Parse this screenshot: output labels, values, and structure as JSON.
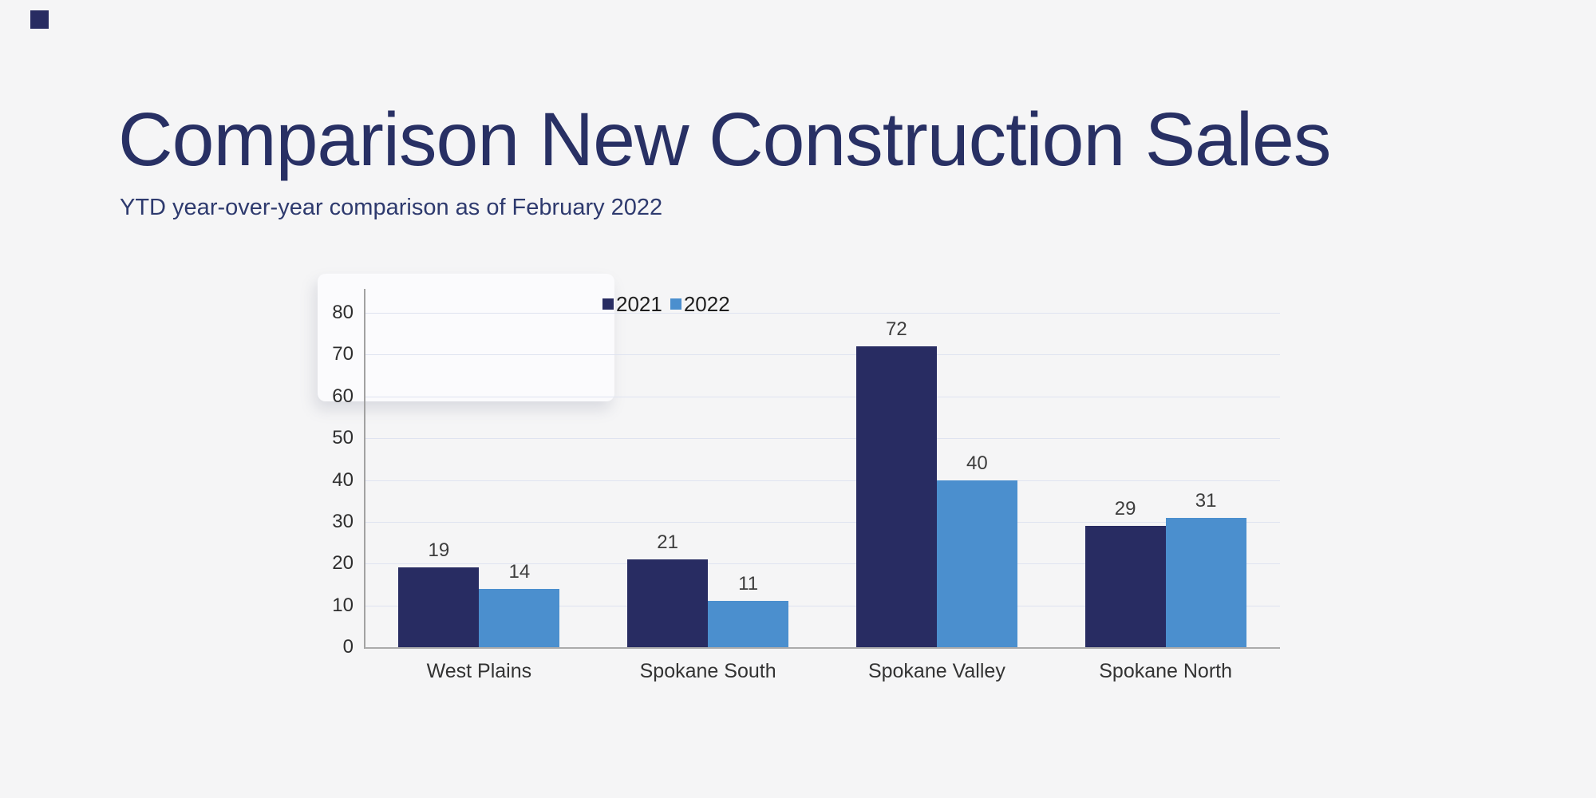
{
  "slide": {
    "title": "Comparison New Construction Sales",
    "subtitle": "YTD year-over-year comparison as of February 2022",
    "background_color": "#f5f5f6",
    "title_color": "#283064",
    "subtitle_color": "#2e3a6e",
    "accent_square_color": "#282c62"
  },
  "chart_data": {
    "type": "bar",
    "categories": [
      "West Plains",
      "Spokane South",
      "Spokane Valley",
      "Spokane North"
    ],
    "series": [
      {
        "name": "2021",
        "color": "#282c62",
        "values": [
          19,
          21,
          72,
          29
        ]
      },
      {
        "name": "2022",
        "color": "#4b8fce",
        "values": [
          14,
          11,
          40,
          31
        ]
      }
    ],
    "ylim": [
      0,
      80
    ],
    "yticks": [
      0,
      10,
      20,
      30,
      40,
      50,
      60,
      70,
      80
    ],
    "grid": true,
    "gridline_color": "#dfe3f0",
    "legend_position": "top",
    "value_labels": true
  }
}
